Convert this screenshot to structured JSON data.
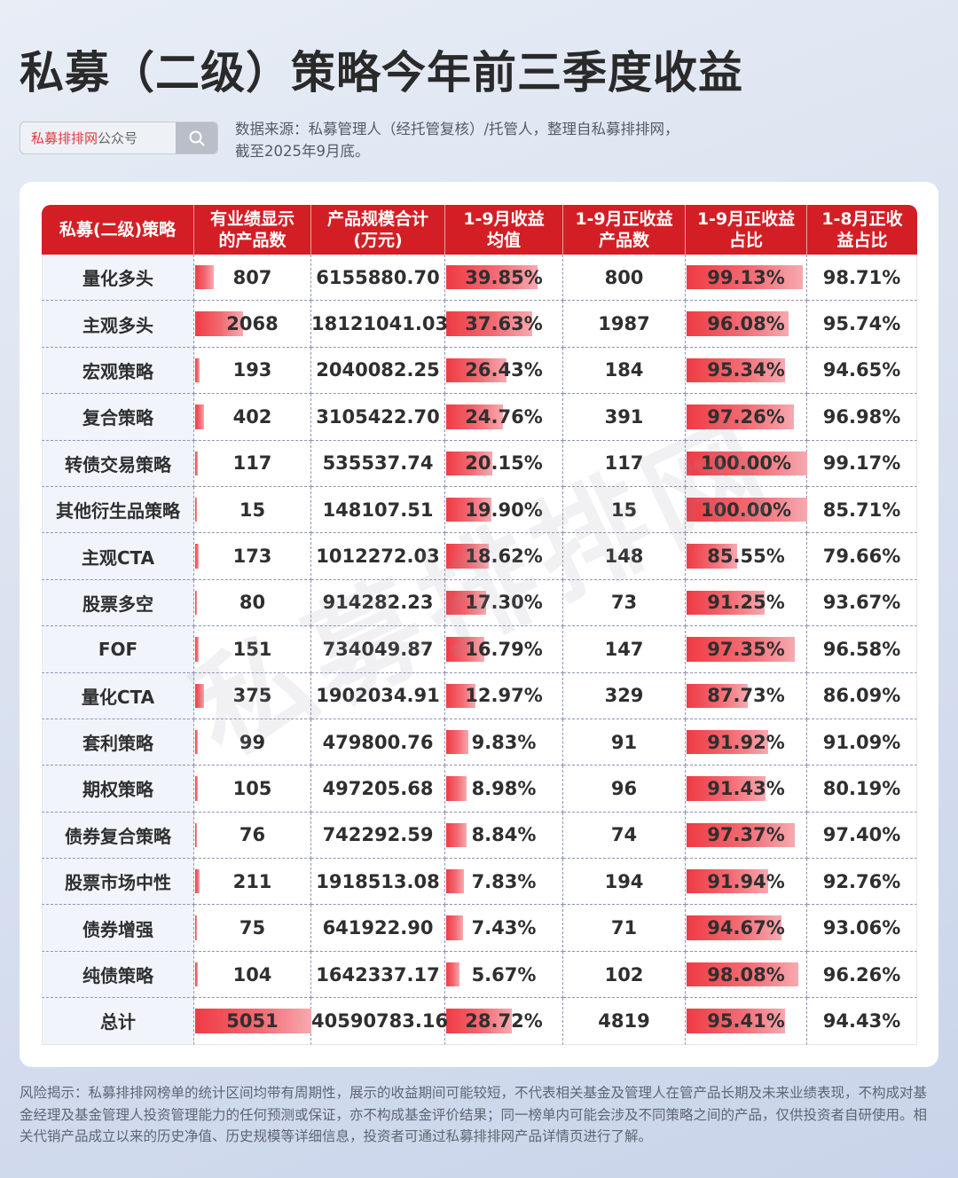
{
  "header": {
    "title": "私募（二级）策略今年前三季度收益",
    "search_brand": "私募排排网",
    "search_suffix": "公众号",
    "search_icon": "search-icon",
    "source_line1": "数据来源：私募管理人（经托管复核）/托管人，整理自私募排排网，",
    "source_line2": "截至2025年9月底。"
  },
  "colors": {
    "header_red": "#d41e25",
    "bar_red": "#ef3b44",
    "brand_red": "#e03a3e"
  },
  "table": {
    "columns": [
      "私募(二级)策略",
      "有业绩显示的产品数",
      "产品规模合计(万元)",
      "1-9月收益均值",
      "1-9月正收益产品数",
      "1-9月正收益占比",
      "1-8月正收益占比"
    ],
    "header_lines": [
      [
        "私募(二级)策略",
        ""
      ],
      [
        "有业绩显示",
        "的产品数"
      ],
      [
        "产品规模合计",
        "(万元)"
      ],
      [
        "1-9月收益",
        "均值"
      ],
      [
        "1-9月正收益",
        "产品数"
      ],
      [
        "1-9月正收益",
        "占比"
      ],
      [
        "1-8月正收",
        "益占比"
      ]
    ],
    "rows": [
      {
        "strategy": "量化多头",
        "count": "807",
        "scale": "6155880.70",
        "avg_return": "39.85%",
        "pos_count": "800",
        "pos_ratio_9": "99.13%",
        "pos_ratio_8": "98.71%"
      },
      {
        "strategy": "主观多头",
        "count": "2068",
        "scale": "18121041.03",
        "avg_return": "37.63%",
        "pos_count": "1987",
        "pos_ratio_9": "96.08%",
        "pos_ratio_8": "95.74%"
      },
      {
        "strategy": "宏观策略",
        "count": "193",
        "scale": "2040082.25",
        "avg_return": "26.43%",
        "pos_count": "184",
        "pos_ratio_9": "95.34%",
        "pos_ratio_8": "94.65%"
      },
      {
        "strategy": "复合策略",
        "count": "402",
        "scale": "3105422.70",
        "avg_return": "24.76%",
        "pos_count": "391",
        "pos_ratio_9": "97.26%",
        "pos_ratio_8": "96.98%"
      },
      {
        "strategy": "转债交易策略",
        "count": "117",
        "scale": "535537.74",
        "avg_return": "20.15%",
        "pos_count": "117",
        "pos_ratio_9": "100.00%",
        "pos_ratio_8": "99.17%"
      },
      {
        "strategy": "其他衍生品策略",
        "count": "15",
        "scale": "148107.51",
        "avg_return": "19.90%",
        "pos_count": "15",
        "pos_ratio_9": "100.00%",
        "pos_ratio_8": "85.71%"
      },
      {
        "strategy": "主观CTA",
        "count": "173",
        "scale": "1012272.03",
        "avg_return": "18.62%",
        "pos_count": "148",
        "pos_ratio_9": "85.55%",
        "pos_ratio_8": "79.66%"
      },
      {
        "strategy": "股票多空",
        "count": "80",
        "scale": "914282.23",
        "avg_return": "17.30%",
        "pos_count": "73",
        "pos_ratio_9": "91.25%",
        "pos_ratio_8": "93.67%"
      },
      {
        "strategy": "FOF",
        "count": "151",
        "scale": "734049.87",
        "avg_return": "16.79%",
        "pos_count": "147",
        "pos_ratio_9": "97.35%",
        "pos_ratio_8": "96.58%"
      },
      {
        "strategy": "量化CTA",
        "count": "375",
        "scale": "1902034.91",
        "avg_return": "12.97%",
        "pos_count": "329",
        "pos_ratio_9": "87.73%",
        "pos_ratio_8": "86.09%"
      },
      {
        "strategy": "套利策略",
        "count": "99",
        "scale": "479800.76",
        "avg_return": "9.83%",
        "pos_count": "91",
        "pos_ratio_9": "91.92%",
        "pos_ratio_8": "91.09%"
      },
      {
        "strategy": "期权策略",
        "count": "105",
        "scale": "497205.68",
        "avg_return": "8.98%",
        "pos_count": "96",
        "pos_ratio_9": "91.43%",
        "pos_ratio_8": "80.19%"
      },
      {
        "strategy": "债券复合策略",
        "count": "76",
        "scale": "742292.59",
        "avg_return": "8.84%",
        "pos_count": "74",
        "pos_ratio_9": "97.37%",
        "pos_ratio_8": "97.40%"
      },
      {
        "strategy": "股票市场中性",
        "count": "211",
        "scale": "1918513.08",
        "avg_return": "7.83%",
        "pos_count": "194",
        "pos_ratio_9": "91.94%",
        "pos_ratio_8": "92.76%"
      },
      {
        "strategy": "债券增强",
        "count": "75",
        "scale": "641922.90",
        "avg_return": "7.43%",
        "pos_count": "71",
        "pos_ratio_9": "94.67%",
        "pos_ratio_8": "93.06%"
      },
      {
        "strategy": "纯债策略",
        "count": "104",
        "scale": "1642337.17",
        "avg_return": "5.67%",
        "pos_count": "102",
        "pos_ratio_9": "98.08%",
        "pos_ratio_8": "96.26%"
      },
      {
        "strategy": "总计",
        "count": "5051",
        "scale": "40590783.16",
        "avg_return": "28.72%",
        "pos_count": "4819",
        "pos_ratio_9": "95.41%",
        "pos_ratio_8": "94.43%"
      }
    ]
  },
  "watermark": "私募排排网",
  "disclaimer": "风险揭示：私募排排网榜单的统计区间均带有周期性，展示的收益期间可能较短，不代表相关基金及管理人在管产品长期及未来业绩表现，不构成对基金经理及基金管理人投资管理能力的任何预测或保证，亦不构成基金评价结果；同一榜单内可能会涉及不同策略之间的产品，仅供投资者自研使用。相关代销产品成立以来的历史净值、历史规模等详细信息，投资者可通过私募排排网产品详情页进行了解。"
}
